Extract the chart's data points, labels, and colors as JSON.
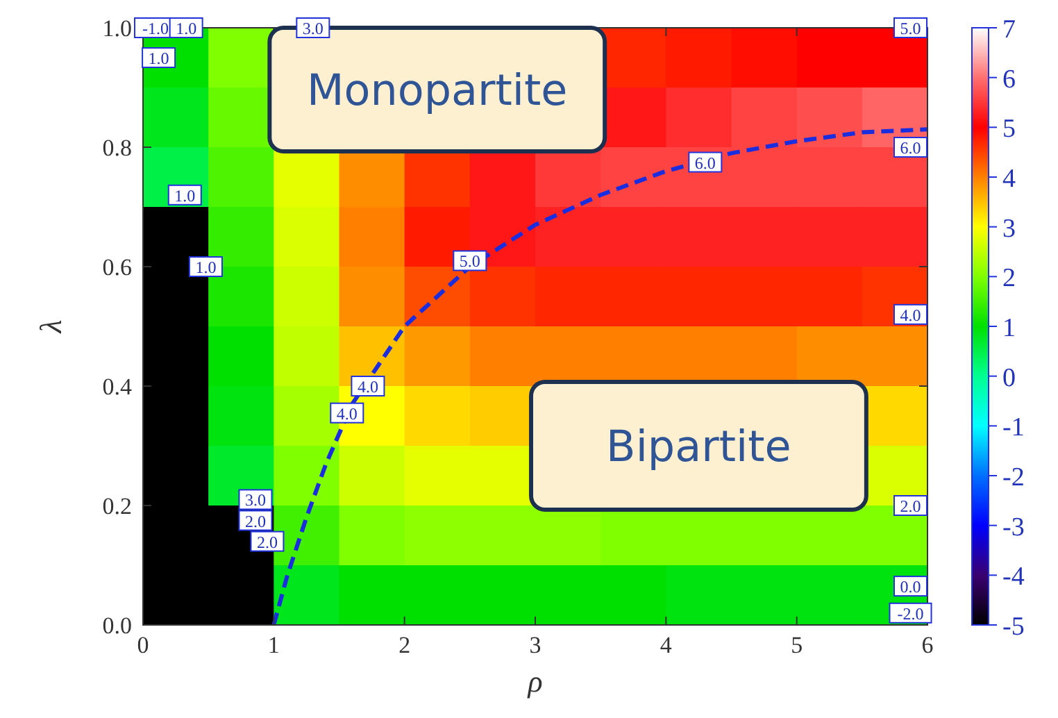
{
  "chart_data": {
    "type": "heatmap",
    "xlabel": "ρ",
    "ylabel": "λ",
    "xlim": [
      0,
      6
    ],
    "xticks": [
      0,
      1,
      2,
      3,
      4,
      5,
      6
    ],
    "ylim": [
      0,
      1
    ],
    "yticks": [
      {
        "value": 0,
        "label": "0.0"
      },
      {
        "value": 0.2,
        "label": "0.2"
      },
      {
        "value": 0.4,
        "label": "0.4"
      },
      {
        "value": 0.6,
        "label": "0.6"
      },
      {
        "value": 0.8,
        "label": "0.8"
      },
      {
        "value": 1,
        "label": "1.0"
      }
    ],
    "clim": [
      -5,
      7
    ],
    "cticks": [
      -5,
      -4,
      -3,
      -2,
      -1,
      0,
      1,
      2,
      3,
      4,
      5,
      6,
      7
    ],
    "x": [
      0.25,
      0.75,
      1.25,
      1.75,
      2.25,
      2.75,
      3.25,
      3.75,
      4.25,
      4.75,
      5.25,
      5.75
    ],
    "y": [
      0.95,
      0.85,
      0.75,
      0.65,
      0.55,
      0.45,
      0.35,
      0.25,
      0.15,
      0.05
    ],
    "cells": [
      [
        1.0,
        2.0,
        null,
        null,
        null,
        null,
        null,
        4.7,
        4.8,
        4.9,
        5.0,
        5.0
      ],
      [
        0.8,
        1.8,
        null,
        null,
        null,
        null,
        null,
        5.2,
        5.4,
        5.6,
        5.7,
        5.9
      ],
      [
        0.5,
        1.6,
        2.8,
        3.9,
        4.6,
        5.2,
        5.5,
        5.6,
        5.6,
        5.6,
        5.6,
        5.6
      ],
      [
        -5,
        1.4,
        2.7,
        4.0,
        4.8,
        5.2,
        5.3,
        5.3,
        5.3,
        5.3,
        5.3,
        5.3
      ],
      [
        -5,
        1.2,
        2.6,
        3.9,
        4.4,
        4.6,
        4.7,
        4.7,
        4.7,
        4.7,
        4.7,
        4.6
      ],
      [
        -5,
        1.0,
        2.5,
        3.5,
        3.8,
        4.0,
        4.0,
        4.0,
        4.0,
        4.0,
        3.9,
        3.9
      ],
      [
        -5,
        0.9,
        2.3,
        3.0,
        3.3,
        3.4,
        null,
        null,
        null,
        null,
        null,
        3.3
      ],
      [
        -5,
        0.7,
        2.0,
        2.6,
        2.8,
        2.8,
        null,
        null,
        null,
        null,
        null,
        2.7
      ],
      [
        -5,
        -5,
        1.5,
        2.0,
        2.1,
        2.1,
        2.1,
        2.0,
        2.0,
        2.0,
        2.0,
        2.0
      ],
      [
        -5,
        -5,
        0.8,
        1.0,
        1.0,
        1.0,
        1.0,
        1.0,
        0.9,
        0.9,
        0.9,
        0.9
      ]
    ],
    "series": [
      {
        "type": "line",
        "color": "#1a2ee0",
        "line_style": "dashed",
        "x": [
          1,
          1.1,
          1.25,
          1.4,
          1.6,
          2,
          2.5,
          3,
          3.5,
          4,
          4.5,
          5,
          5.5,
          6
        ],
        "values": [
          0,
          0.08,
          0.18,
          0.27,
          0.37,
          0.5,
          0.6,
          0.67,
          0.72,
          0.76,
          0.79,
          0.81,
          0.825,
          0.83
        ]
      }
    ],
    "annotations": [
      "Monopartite",
      "Bipartite",
      "-1.0",
      {
        "text": "1.0",
        "x": 0.33,
        "y": 1.0
      },
      "1.0",
      "1.0",
      {
        "text": "1.0",
        "x": 0.48,
        "y": 0.6
      },
      {
        "text": "3.0",
        "x": 1.3,
        "y": 1.0
      },
      {
        "text": "5.0",
        "x": 5.87,
        "y": 1.0
      },
      "6.0",
      {
        "text": "6.0",
        "x": 5.87,
        "y": 0.8
      },
      {
        "text": "5.0",
        "x": 2.5,
        "y": 0.61
      },
      {
        "text": "4.0",
        "x": 1.72,
        "y": 0.4
      },
      {
        "text": "4.0",
        "x": 1.56,
        "y": 0.355
      },
      "4.0",
      "3.0",
      "2.0",
      "2.0",
      {
        "text": "2.0",
        "x": 5.87,
        "y": 0.2
      },
      "0.0",
      "-2.0"
    ]
  }
}
